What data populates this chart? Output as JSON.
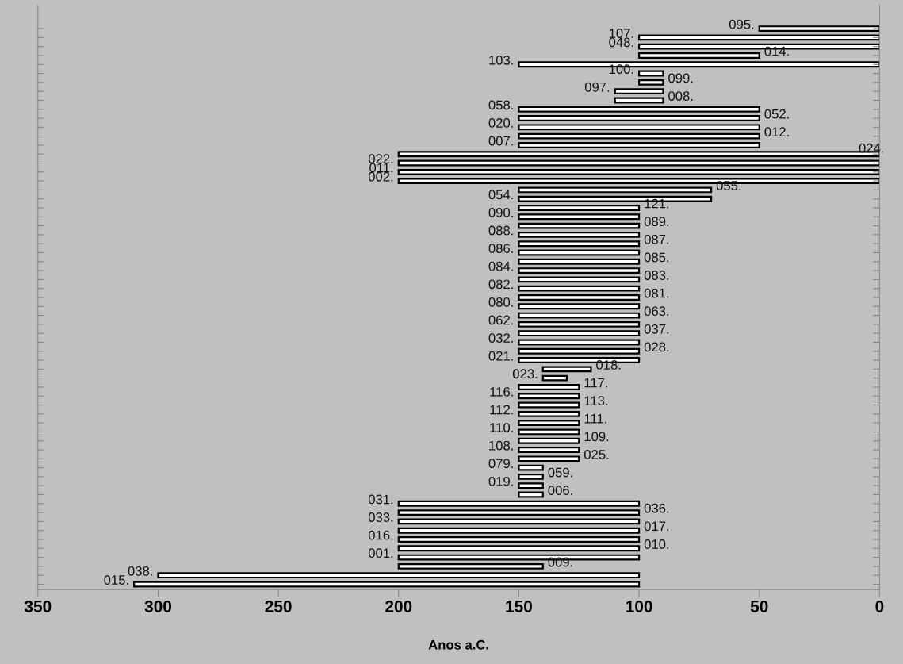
{
  "chart_data": {
    "type": "bar",
    "orientation": "horizontal",
    "xlabel": "Anos a.C.",
    "categories": [
      null,
      null,
      null,
      null,
      null,
      null,
      null,
      null,
      null,
      null,
      null,
      null,
      null,
      null,
      null,
      null,
      null,
      null,
      null,
      null,
      null,
      null,
      null,
      null,
      null,
      null,
      null,
      null,
      null,
      null,
      null,
      null,
      null,
      null,
      null,
      null,
      null,
      null,
      null,
      null,
      null,
      null,
      null,
      null,
      null,
      null,
      null,
      null,
      null,
      null,
      null,
      null,
      null,
      null,
      null,
      null,
      null,
      null,
      null,
      null,
      null,
      null,
      null
    ],
    "base": [
      0,
      0,
      0,
      50,
      0,
      90,
      90,
      90,
      90,
      50,
      50,
      50,
      50,
      50,
      0,
      0,
      0,
      0,
      70,
      70,
      100,
      100,
      100,
      100,
      100,
      100,
      100,
      100,
      100,
      100,
      100,
      100,
      100,
      100,
      100,
      100,
      100,
      100,
      120,
      130,
      125,
      125,
      125,
      125,
      125,
      125,
      125,
      125,
      125,
      140,
      140,
      140,
      140,
      100,
      100,
      100,
      100,
      100,
      100,
      100,
      140,
      100,
      100
    ],
    "values": [
      50,
      100,
      100,
      50,
      150,
      10,
      10,
      20,
      20,
      100,
      100,
      100,
      100,
      100,
      200,
      200,
      200,
      200,
      80,
      80,
      50,
      50,
      50,
      50,
      50,
      50,
      50,
      50,
      50,
      50,
      50,
      50,
      50,
      50,
      50,
      50,
      50,
      50,
      20,
      10,
      25,
      25,
      25,
      25,
      25,
      25,
      25,
      25,
      25,
      10,
      10,
      10,
      10,
      100,
      100,
      100,
      100,
      100,
      100,
      100,
      60,
      200,
      210
    ],
    "color": "#ffffff",
    "annotations": [
      {
        "text": "095.",
        "x": 50
      },
      {
        "text": "107.",
        "x": 100
      },
      {
        "text": "048.",
        "x": 100
      },
      {
        "text": "014.",
        "x": 50
      },
      {
        "text": "103.",
        "x": 150
      },
      {
        "text": "100.",
        "x": 100
      },
      {
        "text": "099.",
        "x": 90
      },
      {
        "text": "097.",
        "x": 110
      },
      {
        "text": "008.",
        "x": 90
      },
      {
        "text": "058.",
        "x": 150
      },
      {
        "text": "052.",
        "x": 50
      },
      {
        "text": "020.",
        "x": 150
      },
      {
        "text": "012.",
        "x": 50
      },
      {
        "text": "007.",
        "x": 150
      },
      {
        "text": "024.",
        "x": 0
      },
      {
        "text": "022.",
        "x": 200
      },
      {
        "text": "011.",
        "x": 200
      },
      {
        "text": "002.",
        "x": 200
      },
      {
        "text": "055.",
        "x": 70
      },
      {
        "text": "054.",
        "x": 150
      },
      {
        "text": "121.",
        "x": 100
      },
      {
        "text": "090.",
        "x": 150
      },
      {
        "text": "089.",
        "x": 100
      },
      {
        "text": "088.",
        "x": 150
      },
      {
        "text": "087.",
        "x": 100
      },
      {
        "text": "086.",
        "x": 150
      },
      {
        "text": "085.",
        "x": 100
      },
      {
        "text": "084.",
        "x": 150
      },
      {
        "text": "083.",
        "x": 100
      },
      {
        "text": "082.",
        "x": 150
      },
      {
        "text": "081.",
        "x": 100
      },
      {
        "text": "080.",
        "x": 150
      },
      {
        "text": "063.",
        "x": 100
      },
      {
        "text": "062.",
        "x": 150
      },
      {
        "text": "037.",
        "x": 100
      },
      {
        "text": "032.",
        "x": 150
      },
      {
        "text": "028.",
        "x": 100
      },
      {
        "text": "021.",
        "x": 150
      },
      {
        "text": "018.",
        "x": 120
      },
      {
        "text": "023.",
        "x": 140
      },
      {
        "text": "117.",
        "x": 125
      },
      {
        "text": "116.",
        "x": 150
      },
      {
        "text": "113.",
        "x": 125
      },
      {
        "text": "112.",
        "x": 150
      },
      {
        "text": "111.",
        "x": 125
      },
      {
        "text": "110.",
        "x": 150
      },
      {
        "text": "109.",
        "x": 125
      },
      {
        "text": "108.",
        "x": 150
      },
      {
        "text": "025.",
        "x": 125
      },
      {
        "text": "079.",
        "x": 150
      },
      {
        "text": "059.",
        "x": 140
      },
      {
        "text": "019.",
        "x": 150
      },
      {
        "text": "006.",
        "x": 140
      },
      {
        "text": "031.",
        "x": 200
      },
      {
        "text": "036.",
        "x": 100
      },
      {
        "text": "033.",
        "x": 200
      },
      {
        "text": "017.",
        "x": 100
      },
      {
        "text": "016.",
        "x": 200
      },
      {
        "text": "010.",
        "x": 100
      },
      {
        "text": "001.",
        "x": 200
      },
      {
        "text": "009.",
        "x": 140
      },
      {
        "text": "038.",
        "x": 300
      },
      {
        "text": "015.",
        "x": 310
      }
    ],
    "xlim": [
      350,
      0
    ],
    "xticks": [
      350,
      300,
      250,
      200,
      150,
      100,
      50,
      0
    ],
    "tick_labels": "x",
    "grid": false,
    "legend": false
  }
}
